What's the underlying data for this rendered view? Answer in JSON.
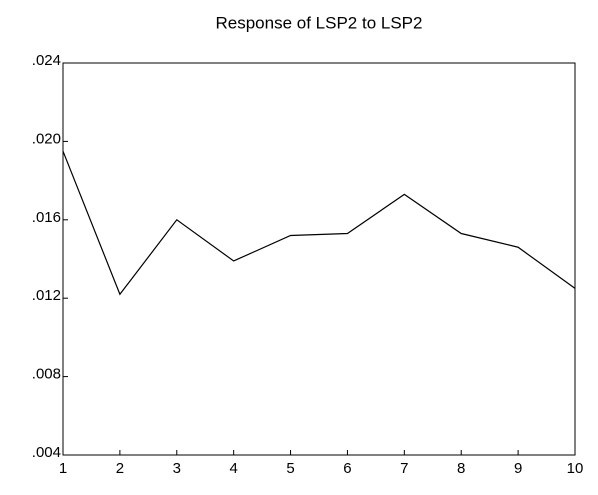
{
  "chart_data": {
    "type": "line",
    "title": "Response of LSP2 to LSP2",
    "x": [
      1,
      2,
      3,
      4,
      5,
      6,
      7,
      8,
      9,
      10
    ],
    "series": [
      {
        "name": "LSP2",
        "color": "#000000",
        "values": [
          0.0195,
          0.0122,
          0.016,
          0.0139,
          0.0152,
          0.0153,
          0.0173,
          0.0153,
          0.0146,
          0.0125
        ]
      }
    ],
    "xlim": [
      1,
      10
    ],
    "xticks": [
      1,
      2,
      3,
      4,
      5,
      6,
      7,
      8,
      9,
      10
    ],
    "ylim": [
      0.004,
      0.024
    ],
    "yticks": [
      {
        "value": 0.004,
        "label": ".004"
      },
      {
        "value": 0.008,
        "label": ".008"
      },
      {
        "value": 0.012,
        "label": ".012"
      },
      {
        "value": 0.016,
        "label": ".016"
      },
      {
        "value": 0.02,
        "label": ".020"
      },
      {
        "value": 0.024,
        "label": ".024"
      }
    ],
    "grid": false
  }
}
